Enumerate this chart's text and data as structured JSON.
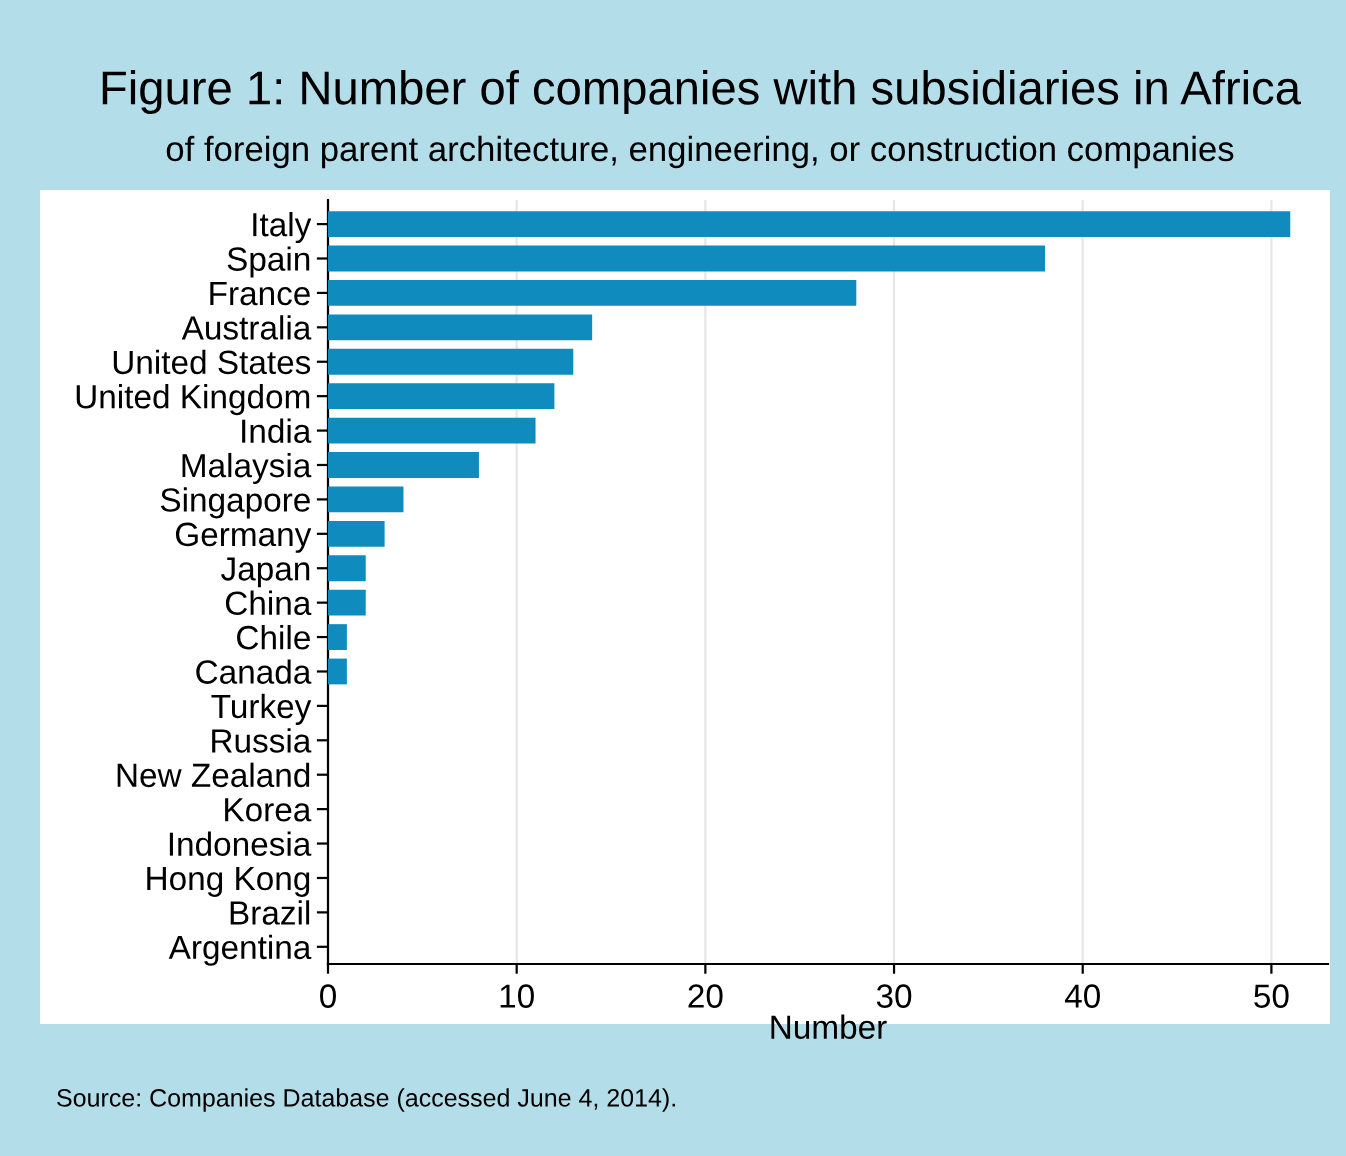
{
  "chart_data": {
    "type": "bar",
    "orientation": "horizontal",
    "title": "Figure 1: Number of companies with subsidiaries in Africa",
    "subtitle": "of foreign parent architecture, engineering, or construction companies",
    "xlabel": "Number",
    "categories": [
      "Italy",
      "Spain",
      "France",
      "Australia",
      "United States",
      "United Kingdom",
      "India",
      "Malaysia",
      "Singapore",
      "Germany",
      "Japan",
      "China",
      "Chile",
      "Canada",
      "Turkey",
      "Russia",
      "New Zealand",
      "Korea",
      "Indonesia",
      "Hong Kong",
      "Brazil",
      "Argentina"
    ],
    "values": [
      51,
      38,
      28,
      14,
      13,
      12,
      11,
      8,
      4,
      3,
      2,
      2,
      1,
      1,
      0,
      0,
      0,
      0,
      0,
      0,
      0,
      0
    ],
    "color": "#0f8cbd",
    "xlim": [
      0,
      53
    ],
    "xticks": [
      0,
      10,
      20,
      30,
      40,
      50
    ],
    "grid": "x",
    "annotations": [
      "Source: Companies Database (accessed June 4, 2014)."
    ]
  }
}
